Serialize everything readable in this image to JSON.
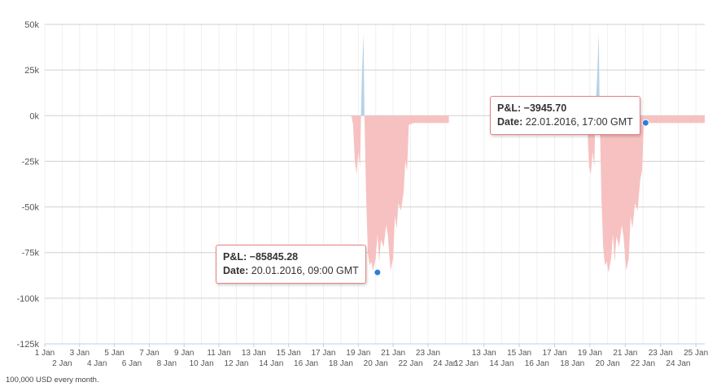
{
  "chart_data": [
    {
      "type": "area",
      "ylim": [
        -125000,
        50000
      ],
      "yticks": [
        {
          "value": 50000,
          "label": "50k"
        },
        {
          "value": 25000,
          "label": "25k"
        },
        {
          "value": 0,
          "label": "0k"
        },
        {
          "value": -25000,
          "label": "-25k"
        },
        {
          "value": -50000,
          "label": "-50k"
        },
        {
          "value": -75000,
          "label": "-75k"
        },
        {
          "value": -100000,
          "label": "-100k"
        },
        {
          "value": -125000,
          "label": "-125k"
        }
      ],
      "xlim": [
        0,
        24.2
      ],
      "xticks_top": [
        {
          "day": 0,
          "label": "1 Jan"
        },
        {
          "day": 2,
          "label": "3 Jan"
        },
        {
          "day": 4,
          "label": "5 Jan"
        },
        {
          "day": 6,
          "label": "7 Jan"
        },
        {
          "day": 8,
          "label": "9 Jan"
        },
        {
          "day": 10,
          "label": "11 Jan"
        },
        {
          "day": 12,
          "label": "13 Jan"
        },
        {
          "day": 14,
          "label": "15 Jan"
        },
        {
          "day": 16,
          "label": "17 Jan"
        },
        {
          "day": 18,
          "label": "19 Jan"
        },
        {
          "day": 20,
          "label": "21 Jan"
        },
        {
          "day": 22,
          "label": "23 Jan"
        }
      ],
      "xticks_bottom": [
        {
          "day": 1,
          "label": "2 Jan"
        },
        {
          "day": 3,
          "label": "4 Jan"
        },
        {
          "day": 5,
          "label": "6 Jan"
        },
        {
          "day": 7,
          "label": "8 Jan"
        },
        {
          "day": 9,
          "label": "10 Jan"
        },
        {
          "day": 11,
          "label": "12 Jan"
        },
        {
          "day": 13,
          "label": "14 Jan"
        },
        {
          "day": 15,
          "label": "16 Jan"
        },
        {
          "day": 17,
          "label": "18 Jan"
        },
        {
          "day": 19,
          "label": "20 Jan"
        },
        {
          "day": 21,
          "label": "22 Jan"
        },
        {
          "day": 23,
          "label": "24 Jan"
        }
      ],
      "series": [
        {
          "color_positive": "#b5d2ea",
          "color_negative": "#f7c1c1",
          "points": [
            [
              17.6,
              0
            ],
            [
              17.7,
              -5000
            ],
            [
              17.8,
              -25000
            ],
            [
              17.9,
              -32000
            ],
            [
              18.0,
              -20000
            ],
            [
              18.1,
              -28000
            ],
            [
              18.15,
              -2000
            ],
            [
              18.2,
              20000
            ],
            [
              18.3,
              45000
            ],
            [
              18.35,
              2000
            ],
            [
              18.45,
              -45000
            ],
            [
              18.55,
              -75000
            ],
            [
              18.65,
              -82000
            ],
            [
              18.75,
              -80000
            ],
            [
              18.85,
              -85000
            ],
            [
              19.0,
              -78000
            ],
            [
              19.1,
              -65000
            ],
            [
              19.2,
              -80000
            ],
            [
              19.3,
              -68000
            ],
            [
              19.45,
              -72000
            ],
            [
              19.6,
              -60000
            ],
            [
              19.7,
              -66000
            ],
            [
              19.85,
              -85000
            ],
            [
              20.0,
              -78000
            ],
            [
              20.1,
              -55000
            ],
            [
              20.2,
              -62000
            ],
            [
              20.3,
              -48000
            ],
            [
              20.45,
              -52000
            ],
            [
              20.6,
              -42000
            ],
            [
              20.7,
              -25000
            ],
            [
              20.8,
              -30000
            ],
            [
              20.9,
              -5000
            ],
            [
              21.2,
              -4000
            ],
            [
              22.3,
              -4000
            ],
            [
              23.2,
              -4000
            ]
          ]
        }
      ],
      "marker": {
        "x": 19.1,
        "y": -85845.28,
        "color": "#2f7ed8"
      },
      "tooltip": {
        "pl_label": "P&L:",
        "pl_value": "−85845.28",
        "date_label": "Date:",
        "date_value": "20.01.2016, 09:00 GMT"
      }
    },
    {
      "type": "area",
      "ylim": [
        -125000,
        50000
      ],
      "xlim": [
        11,
        24.5
      ],
      "xticks_top": [
        {
          "day": 12,
          "label": "13 Jan"
        },
        {
          "day": 14,
          "label": "15 Jan"
        },
        {
          "day": 16,
          "label": "17 Jan"
        },
        {
          "day": 18,
          "label": "19 Jan"
        },
        {
          "day": 20,
          "label": "21 Jan"
        },
        {
          "day": 22,
          "label": "23 Jan"
        },
        {
          "day": 24,
          "label": "25 Jan"
        }
      ],
      "xticks_bottom": [
        {
          "day": 11,
          "label": "12 Jan"
        },
        {
          "day": 13,
          "label": "14 Jan"
        },
        {
          "day": 15,
          "label": "16 Jan"
        },
        {
          "day": 17,
          "label": "18 Jan"
        },
        {
          "day": 19,
          "label": "20 Jan"
        },
        {
          "day": 21,
          "label": "22 Jan"
        },
        {
          "day": 23,
          "label": "24 Jan"
        }
      ],
      "series": [
        {
          "color_positive": "#b5d2ea",
          "color_negative": "#f7c1c1",
          "points": [
            [
              17.7,
              0
            ],
            [
              17.85,
              -5000
            ],
            [
              17.95,
              -28000
            ],
            [
              18.05,
              -32000
            ],
            [
              18.15,
              -20000
            ],
            [
              18.25,
              -28000
            ],
            [
              18.3,
              -2000
            ],
            [
              18.4,
              20000
            ],
            [
              18.5,
              45000
            ],
            [
              18.55,
              2000
            ],
            [
              18.65,
              -45000
            ],
            [
              18.75,
              -72000
            ],
            [
              18.85,
              -82000
            ],
            [
              18.95,
              -80000
            ],
            [
              19.05,
              -86000
            ],
            [
              19.2,
              -78000
            ],
            [
              19.3,
              -65000
            ],
            [
              19.4,
              -80000
            ],
            [
              19.5,
              -66000
            ],
            [
              19.65,
              -72000
            ],
            [
              19.8,
              -60000
            ],
            [
              19.9,
              -66000
            ],
            [
              20.05,
              -85000
            ],
            [
              20.2,
              -78000
            ],
            [
              20.3,
              -55000
            ],
            [
              20.4,
              -62000
            ],
            [
              20.55,
              -48000
            ],
            [
              20.7,
              -52000
            ],
            [
              20.85,
              -35000
            ],
            [
              20.95,
              -30000
            ],
            [
              21.05,
              -5000
            ],
            [
              21.2,
              -4000
            ],
            [
              22.5,
              -4000
            ],
            [
              24.5,
              -4000
            ]
          ]
        }
      ],
      "marker": {
        "x": 21.15,
        "y": -3945.7,
        "color": "#2f7ed8"
      },
      "tooltip": {
        "pl_label": "P&L:",
        "pl_value": "−3945.70",
        "date_label": "Date:",
        "date_value": "22.01.2016, 17:00 GMT"
      }
    }
  ],
  "footnote": "100,000 USD every month."
}
